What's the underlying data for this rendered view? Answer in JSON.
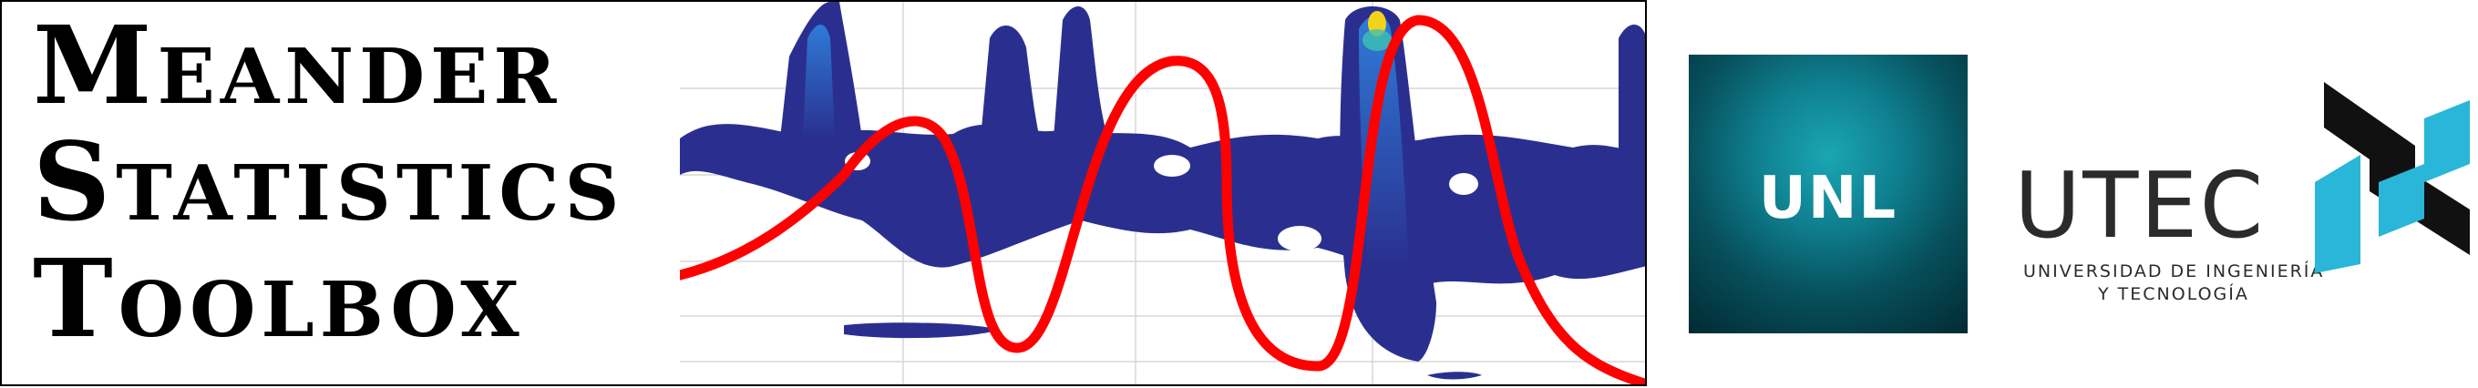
{
  "title_lines": [
    "Meander",
    "Statistics",
    "Toolbox"
  ],
  "logos": {
    "unl": {
      "text": "UNL"
    },
    "utec": {
      "word": "UTEC",
      "subtitle_line1": "UNIVERSIDAD DE INGENIERÍA",
      "subtitle_line2": "Y TECNOLOGÍA"
    }
  },
  "colors": {
    "curve": "#ff0000",
    "contour_dark": "#2a2f8f",
    "contour_light": "#2e7bd6",
    "contour_hot": "#f2d21b",
    "unl_teal": "#0f7f8f",
    "utec_cyan": "#29b6d8"
  }
}
